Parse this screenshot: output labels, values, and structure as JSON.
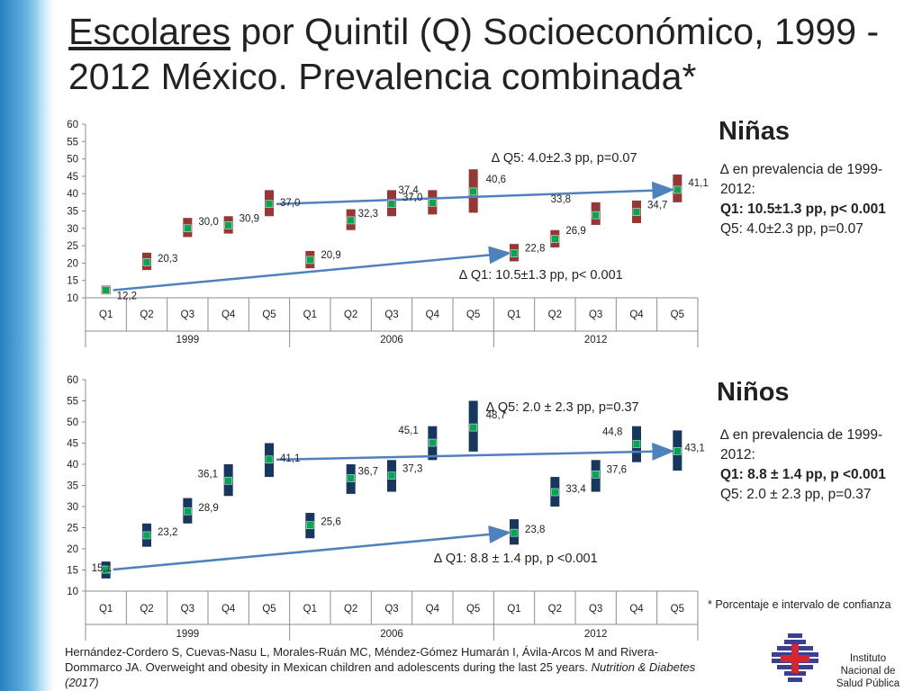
{
  "title_underlined": "Escolares",
  "title_rest": " por Quintil (Q) Socioeconómico, 1999 - 2012 México. Prevalencia combinada*",
  "chart_data": [
    {
      "type": "scatter",
      "panel_label": "Niñas",
      "categories": [
        "Q1",
        "Q2",
        "Q3",
        "Q4",
        "Q5",
        "Q1",
        "Q2",
        "Q3",
        "Q4",
        "Q5",
        "Q1",
        "Q2",
        "Q3",
        "Q4",
        "Q5"
      ],
      "groups": [
        "1999",
        "2006",
        "2012"
      ],
      "values": [
        12.2,
        20.3,
        30.0,
        30.9,
        37.0,
        20.9,
        32.3,
        37.0,
        37.4,
        40.6,
        22.8,
        26.9,
        33.8,
        34.7,
        41.1
      ],
      "value_labels": [
        "12,2",
        "20,3",
        "30,0",
        "30,9",
        "37,0",
        "20,9",
        "32,3",
        "37,0",
        "37,4",
        "40,6",
        "22,8",
        "26,9",
        "33,8",
        "34,7",
        "41,1"
      ],
      "ci_low": [
        11.0,
        18.0,
        27.5,
        28.5,
        33.5,
        18.5,
        29.5,
        33.5,
        34.0,
        34.5,
        20.5,
        24.5,
        31.0,
        31.5,
        37.5
      ],
      "ci_high": [
        13.5,
        23.0,
        33.0,
        33.5,
        41.0,
        23.5,
        35.5,
        41.0,
        41.0,
        47.0,
        25.5,
        29.5,
        37.5,
        38.0,
        45.5
      ],
      "yticks": [
        "60",
        "55",
        "50",
        "45",
        "40",
        "35",
        "30",
        "25",
        "20",
        "15",
        "10"
      ],
      "ylim": [
        10,
        60
      ],
      "annotations": {
        "q5": "∆ Q5: 4.0±2.3 pp, p=0.07",
        "q1": "∆ Q1: 10.5±1.3 pp, p< 0.001"
      },
      "trend_q5": {
        "from_index": 4,
        "to_index": 14
      },
      "trend_q1": {
        "from_index": 0,
        "to_index": 10
      },
      "bar_color": "#953735",
      "point_color": "#00a651",
      "arrow_color": "#4f81bd"
    },
    {
      "type": "scatter",
      "panel_label": "Niños",
      "categories": [
        "Q1",
        "Q2",
        "Q3",
        "Q4",
        "Q5",
        "Q1",
        "Q2",
        "Q3",
        "Q4",
        "Q5",
        "Q1",
        "Q2",
        "Q3",
        "Q4",
        "Q5"
      ],
      "groups": [
        "1999",
        "2006",
        "2012"
      ],
      "values": [
        15.1,
        23.2,
        28.9,
        36.1,
        41.1,
        25.6,
        36.7,
        37.3,
        45.1,
        48.7,
        23.8,
        33.4,
        37.6,
        44.8,
        43.1
      ],
      "value_labels": [
        "15,1",
        "23,2",
        "28,9",
        "36,1",
        "41,1",
        "25,6",
        "36,7",
        "37,3",
        "45,1",
        "48,7",
        "23,8",
        "33,4",
        "37,6",
        "44,8",
        "43,1"
      ],
      "ci_low": [
        13.0,
        20.5,
        26.0,
        32.5,
        37.0,
        22.5,
        33.0,
        33.5,
        41.0,
        43.0,
        21.0,
        30.0,
        33.5,
        40.5,
        38.5
      ],
      "ci_high": [
        17.0,
        26.0,
        32.0,
        40.0,
        45.0,
        28.5,
        40.0,
        41.0,
        49.0,
        55.0,
        27.0,
        37.0,
        41.0,
        49.0,
        48.0
      ],
      "yticks": [
        "60",
        "55",
        "50",
        "45",
        "40",
        "35",
        "30",
        "25",
        "20",
        "15",
        "10"
      ],
      "ylim": [
        10,
        60
      ],
      "annotations": {
        "q5": "∆ Q5: 2.0 ± 2.3 pp, p=0.37",
        "q1": "∆ Q1: 8.8 ± 1.4 pp, p <0.001"
      },
      "trend_q5": {
        "from_index": 4,
        "to_index": 14
      },
      "trend_q1": {
        "from_index": 0,
        "to_index": 10
      },
      "bar_color": "#17375e",
      "point_color": "#00a651",
      "arrow_color": "#4f81bd"
    }
  ],
  "notes": [
    {
      "line1": "∆ en prevalencia de 1999-2012:",
      "line2": "Q1: 10.5±1.3 pp, p< 0.001",
      "line3": "Q5: 4.0±2.3 pp, p=0.07"
    },
    {
      "line1": "∆ en prevalencia de 1999-2012:",
      "line2": "Q1: 8.8 ± 1.4 pp, p <0.001",
      "line3": "Q5: 2.0 ± 2.3 pp, p=0.37"
    }
  ],
  "footnote": "* Porcentaje e intervalo de confianza",
  "citation_text": "Hernández-Cordero S, Cuevas-Nasu L, Morales-Ruán MC, Méndez-Gómez Humarán I, Ávila-Arcos M and Rivera-Dommarco JA. Overweight and obesity in Mexican children and adolescents  during the last 25 years. ",
  "citation_journal": "Nutrition & Diabetes (2017)",
  "logo_text": "Instituto Nacional de Salud Pública"
}
